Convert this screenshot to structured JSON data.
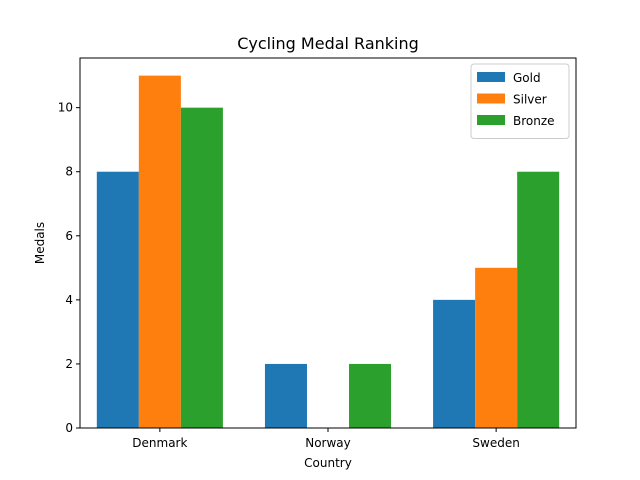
{
  "chart_data": {
    "type": "bar",
    "title": "Cycling Medal Ranking",
    "xlabel": "Country",
    "ylabel": "Medals",
    "categories": [
      "Denmark",
      "Norway",
      "Sweden"
    ],
    "series": [
      {
        "name": "Gold",
        "values": [
          8,
          2,
          4
        ],
        "color": "#1f77b4"
      },
      {
        "name": "Silver",
        "values": [
          11,
          0,
          5
        ],
        "color": "#ff7f0e"
      },
      {
        "name": "Bronze",
        "values": [
          10,
          2,
          8
        ],
        "color": "#2ca02c"
      }
    ],
    "ylim": [
      0,
      11.55
    ],
    "yticks": [
      0,
      2,
      4,
      6,
      8,
      10
    ],
    "grid": false,
    "legend": "top-right"
  }
}
